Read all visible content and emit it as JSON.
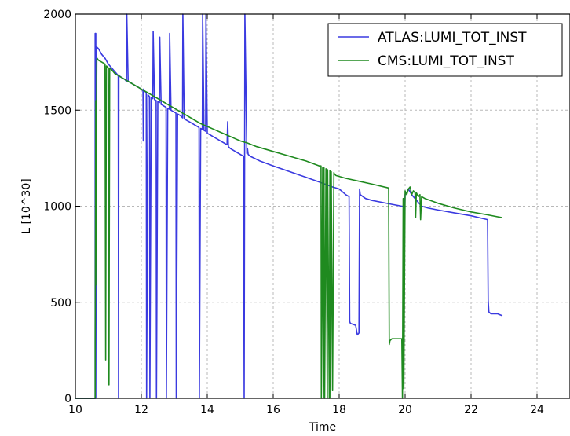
{
  "chart_data": {
    "type": "line",
    "title": "",
    "xlabel": "Time",
    "ylabel": "L [10^30]",
    "xlim": [
      10,
      25
    ],
    "ylim": [
      0,
      2000
    ],
    "xticks": [
      10,
      12,
      14,
      16,
      18,
      20,
      22,
      24
    ],
    "yticks": [
      0,
      500,
      1000,
      1500,
      2000
    ],
    "grid": true,
    "legend_position": "top-right",
    "series": [
      {
        "name": "ATLAS:LUMI_TOT_INST",
        "color": "#3a3ae0",
        "x": [
          10.0,
          10.6,
          10.6,
          10.62,
          10.62,
          10.64,
          10.7,
          10.8,
          10.9,
          11.0,
          11.1,
          11.2,
          11.3,
          11.31,
          11.32,
          11.4,
          11.5,
          11.55,
          11.56,
          11.6,
          11.7,
          11.8,
          11.9,
          12.0,
          12.05,
          12.06,
          12.07,
          12.1,
          12.15,
          12.16,
          12.2,
          12.25,
          12.26,
          12.3,
          12.35,
          12.36,
          12.4,
          12.45,
          12.46,
          12.5,
          12.55,
          12.56,
          12.6,
          12.65,
          12.7,
          12.75,
          12.76,
          12.8,
          12.85,
          12.86,
          12.9,
          13.0,
          13.05,
          13.06,
          13.1,
          13.2,
          13.25,
          13.26,
          13.3,
          13.4,
          13.5,
          13.6,
          13.7,
          13.75,
          13.76,
          13.8,
          13.85,
          13.86,
          13.9,
          13.95,
          13.96,
          14.0,
          14.1,
          14.2,
          14.3,
          14.4,
          14.5,
          14.6,
          14.62,
          14.64,
          14.7,
          14.8,
          15.0,
          15.1,
          15.12,
          15.14,
          15.2,
          15.22,
          15.24,
          15.3,
          15.6,
          16.0,
          16.5,
          17.0,
          17.5,
          17.8,
          18.0,
          18.2,
          18.3,
          18.32,
          18.34,
          18.5,
          18.55,
          18.6,
          18.62,
          18.64,
          18.8,
          19.0,
          19.3,
          19.6,
          19.9,
          19.95,
          19.97,
          20.0,
          20.05,
          20.1,
          20.2,
          20.3,
          20.4,
          20.5,
          20.7,
          21.0,
          21.5,
          22.0,
          22.5,
          22.52,
          22.54,
          22.6,
          22.8,
          22.95
        ],
        "y": [
          0,
          0,
          1900,
          1900,
          0,
          1830,
          1820,
          1790,
          1770,
          1740,
          1720,
          1700,
          1680,
          0,
          1680,
          1670,
          1660,
          1650,
          2000,
          1650,
          1640,
          1630,
          1620,
          1610,
          1600,
          1340,
          1610,
          1600,
          1590,
          0,
          1580,
          1570,
          0,
          1565,
          1560,
          1910,
          1555,
          1550,
          0,
          1545,
          1540,
          1880,
          1530,
          1525,
          1520,
          1515,
          0,
          1510,
          1505,
          1900,
          1500,
          1490,
          1485,
          0,
          1480,
          1470,
          1460,
          2000,
          1455,
          1445,
          1435,
          1425,
          1415,
          1410,
          0,
          1405,
          1400,
          2000,
          1395,
          1390,
          2000,
          1380,
          1370,
          1360,
          1350,
          1340,
          1330,
          1320,
          1440,
          1310,
          1300,
          1290,
          1270,
          1260,
          0,
          2000,
          1275,
          1300,
          1270,
          1260,
          1235,
          1210,
          1180,
          1150,
          1120,
          1100,
          1090,
          1060,
          1050,
          400,
          390,
          380,
          330,
          340,
          1090,
          1060,
          1040,
          1030,
          1020,
          1010,
          1000,
          1000,
          850,
          1060,
          1070,
          1090,
          1060,
          1040,
          1020,
          1000,
          990,
          980,
          965,
          950,
          930,
          510,
          450,
          440,
          440,
          430
        ]
      },
      {
        "name": "CMS:LUMI_TOT_INST",
        "color": "#1f8a1f",
        "x": [
          10.0,
          10.6,
          10.6,
          10.62,
          10.62,
          10.65,
          10.66,
          10.7,
          10.8,
          10.9,
          10.92,
          10.94,
          11.0,
          11.02,
          11.04,
          11.1,
          11.2,
          11.4,
          11.6,
          11.8,
          12.0,
          12.2,
          12.4,
          12.6,
          12.8,
          13.0,
          13.2,
          13.4,
          13.6,
          13.8,
          14.0,
          14.2,
          14.4,
          14.6,
          14.8,
          15.0,
          15.2,
          15.5,
          16.0,
          16.5,
          17.0,
          17.4,
          17.45,
          17.46,
          17.5,
          17.52,
          17.54,
          17.56,
          17.6,
          17.64,
          17.65,
          17.7,
          17.72,
          17.74,
          17.76,
          17.8,
          17.84,
          17.85,
          17.9,
          18.2,
          18.6,
          19.0,
          19.5,
          19.52,
          19.54,
          19.6,
          19.9,
          19.92,
          19.94,
          19.96,
          20.0,
          20.05,
          20.1,
          20.15,
          20.2,
          20.25,
          20.3,
          20.32,
          20.34,
          20.4,
          20.45,
          20.47,
          20.5,
          20.6,
          21.0,
          21.5,
          22.0,
          22.5,
          22.95
        ],
        "y": [
          0,
          0,
          290,
          1550,
          590,
          1760,
          1770,
          1760,
          1750,
          1740,
          200,
          1730,
          1720,
          70,
          1720,
          1710,
          1690,
          1670,
          1650,
          1630,
          1610,
          1590,
          1570,
          1550,
          1530,
          1510,
          1490,
          1470,
          1450,
          1430,
          1415,
          1400,
          1385,
          1370,
          1355,
          1340,
          1330,
          1310,
          1285,
          1260,
          1235,
          1210,
          1210,
          0,
          1200,
          0,
          1200,
          0,
          1195,
          0,
          1190,
          0,
          1185,
          0,
          1180,
          40,
          1175,
          1170,
          1160,
          1145,
          1130,
          1115,
          1095,
          280,
          300,
          310,
          310,
          0,
          1040,
          50,
          1080,
          1060,
          1090,
          1100,
          1060,
          1080,
          1070,
          940,
          1070,
          1050,
          1060,
          930,
          1050,
          1040,
          1015,
          990,
          970,
          955,
          940
        ]
      }
    ]
  }
}
